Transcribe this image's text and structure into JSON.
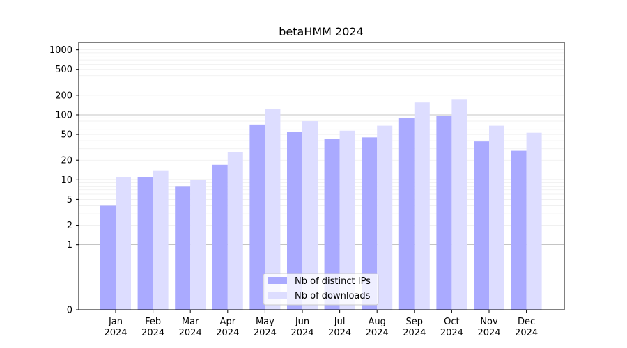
{
  "chart_data": {
    "type": "bar",
    "title": "betaHMM 2024",
    "xlabel": "",
    "ylabel": "",
    "yscale": "symlog",
    "ylim": [
      0,
      1300
    ],
    "y_ticks": [
      0,
      1,
      2,
      5,
      10,
      20,
      50,
      100,
      200,
      500,
      1000
    ],
    "y_tick_labels": [
      "0",
      "1",
      "2",
      "5",
      "10",
      "20",
      "50",
      "100",
      "200",
      "500",
      "1000"
    ],
    "categories": [
      "Jan\n2024",
      "Feb\n2024",
      "Mar\n2024",
      "Apr\n2024",
      "May\n2024",
      "Jun\n2024",
      "Jul\n2024",
      "Aug\n2024",
      "Sep\n2024",
      "Oct\n2024",
      "Nov\n2024",
      "Dec\n2024"
    ],
    "series": [
      {
        "name": "Nb of distinct IPs",
        "color": "#aaaaff",
        "values": [
          4,
          11,
          8,
          17,
          71,
          54,
          43,
          45,
          90,
          97,
          39,
          28
        ]
      },
      {
        "name": "Nb of downloads",
        "color": "#ddddff",
        "values": [
          11,
          14,
          10,
          27,
          124,
          80,
          57,
          68,
          155,
          175,
          68,
          53
        ]
      }
    ],
    "grid": true,
    "legend_position": "lower-center"
  }
}
